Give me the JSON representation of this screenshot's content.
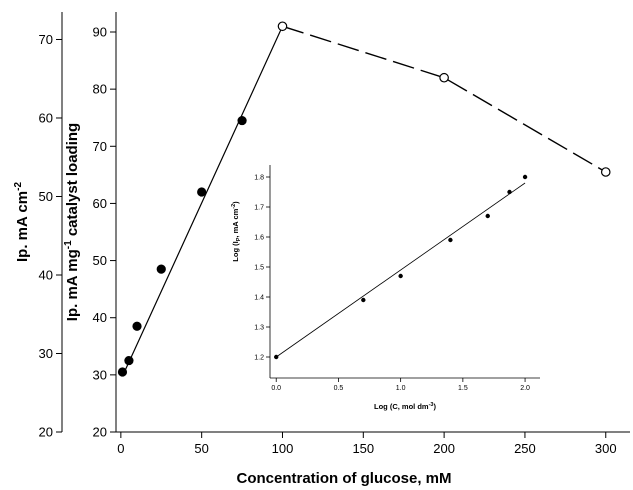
{
  "chart_data": [
    {
      "type": "line",
      "x_axis": {
        "label": "Concentration of glucose, mM",
        "range": [
          -3,
          315
        ],
        "ticks": [
          0,
          50,
          100,
          150,
          200,
          250,
          300
        ]
      },
      "y_axis_outer": {
        "label_main": "Ip. mA cm",
        "label_sup": "-2",
        "range": [
          20,
          73.5
        ],
        "ticks": [
          20,
          30,
          40,
          50,
          60,
          70
        ]
      },
      "y_axis_inner": {
        "label_main": "Ip. mA mg",
        "label_sup": "-1",
        "label_end": " catalyst loading",
        "range": [
          20,
          93.5
        ],
        "ticks": [
          20,
          30,
          40,
          50,
          60,
          70,
          80,
          90
        ]
      },
      "series": [
        {
          "marker": "filled-circle",
          "x": [
            1,
            5,
            10,
            25,
            50,
            75
          ],
          "y": [
            30.5,
            32.5,
            38.5,
            48.5,
            62,
            74.5
          ]
        },
        {
          "marker": "open-circle",
          "x": [
            100,
            200,
            300
          ],
          "y": [
            91,
            82,
            65.5
          ]
        }
      ],
      "lines": [
        {
          "style": "solid",
          "from": [
            3,
            31
          ],
          "to": [
            100,
            91
          ]
        },
        {
          "style": "dashed",
          "points": [
            [
              100,
              91
            ],
            [
              200,
              82
            ],
            [
              300,
              65.5
            ]
          ]
        }
      ]
    },
    {
      "type": "scatter",
      "inset": true,
      "x_axis": {
        "label_pre": "Log (C, mol dm",
        "label_sup": "-3",
        "label_post": ")",
        "range": [
          -0.05,
          2.12
        ],
        "ticks": [
          "0.0",
          "0.5",
          "1.0",
          "1.5",
          "2.0"
        ]
      },
      "y_axis": {
        "label_pre": "Log (I",
        "label_sub": "P",
        "label_mid": ", mA cm",
        "label_sup": "-2",
        "label_post": ")",
        "range": [
          1.13,
          1.84
        ],
        "ticks": [
          "1.2",
          "1.3",
          "1.4",
          "1.5",
          "1.6",
          "1.7",
          "1.8"
        ]
      },
      "series": [
        {
          "marker": "filled-circle",
          "x": [
            0,
            0.7,
            1.0,
            1.4,
            1.7,
            1.875,
            2.0
          ],
          "y": [
            1.2,
            1.39,
            1.47,
            1.59,
            1.67,
            1.75,
            1.8
          ]
        }
      ],
      "fit_line": {
        "from": [
          0,
          1.2
        ],
        "to": [
          2.0,
          1.78
        ]
      }
    }
  ]
}
